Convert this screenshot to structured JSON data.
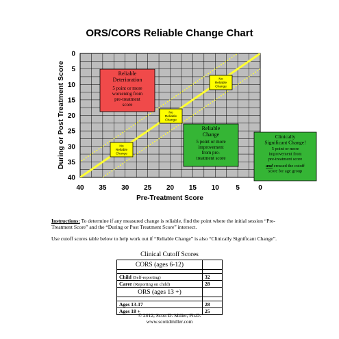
{
  "chart_data": {
    "type": "line",
    "title": "ORS/CORS Reliable Change Chart",
    "xlabel": "Pre-Treatment Score",
    "ylabel": "During or Post Treatment Score",
    "xlim": [
      40,
      0
    ],
    "ylim": [
      0,
      40
    ],
    "x_ticks": [
      40,
      35,
      30,
      25,
      20,
      15,
      10,
      5,
      0
    ],
    "y_ticks": [
      0,
      5,
      10,
      15,
      20,
      25,
      30,
      35,
      40
    ],
    "grid": true,
    "series": [
      {
        "style": "solid",
        "x": [
          0,
          40
        ],
        "y": [
          0,
          40
        ]
      },
      {
        "style": "dotted",
        "x": [
          0,
          40
        ],
        "y": [
          -5,
          35
        ]
      },
      {
        "style": "dotted",
        "x": [
          0,
          40
        ],
        "y": [
          5,
          45
        ]
      }
    ],
    "annotations": {
      "deterioration": {
        "title": "Reliable Deterioration",
        "body": "5 point or more worsening from pre-treatment score",
        "color": "#f04a4a"
      },
      "reliable_change": {
        "title": "Reliable Change",
        "body": "5 point or more improvement from pre-treatment score",
        "color": "#35b535"
      },
      "clinical": {
        "title": "Clinically Significant Change!",
        "body_1": "5 point or more improvement from pre-treatment score",
        "and_word": "and",
        "body_2": "crossed the cutoff score for age group",
        "color": "#35b535"
      },
      "no_change_label": "No Reliable Change",
      "no_change_color": "#ffff00"
    }
  },
  "instructions": {
    "lead": "Instructions:",
    "text": " To determine if any measured change is reliable, find the point where the initial session “Pre-Treatment Score” and the “During or Post Treatment Score” intersect.",
    "text2": "Use cutoff scores table below to help work out if “Reliable Change” is also “Clinically Significant Change”."
  },
  "cutoff": {
    "title": "Clinical Cutoff Scores",
    "cors_header": "CORS (ages 6-12)",
    "child_label": "Child",
    "child_note": "(Self-reporting)",
    "child_value": "32",
    "carer_label": "Carer",
    "carer_note": "(Reporting on child)",
    "carer_value": "28",
    "ors_header": "ORS (ages 13 +)",
    "ages_1317_label": "Ages 13-17",
    "ages_1317_value": "28",
    "ages_18_label": "Ages 18 +",
    "ages_18_value": "25"
  },
  "footer": {
    "copyright": "© 2012, Scott D. Miller, Ph.D.",
    "url": "www.scottdmiller.com"
  }
}
